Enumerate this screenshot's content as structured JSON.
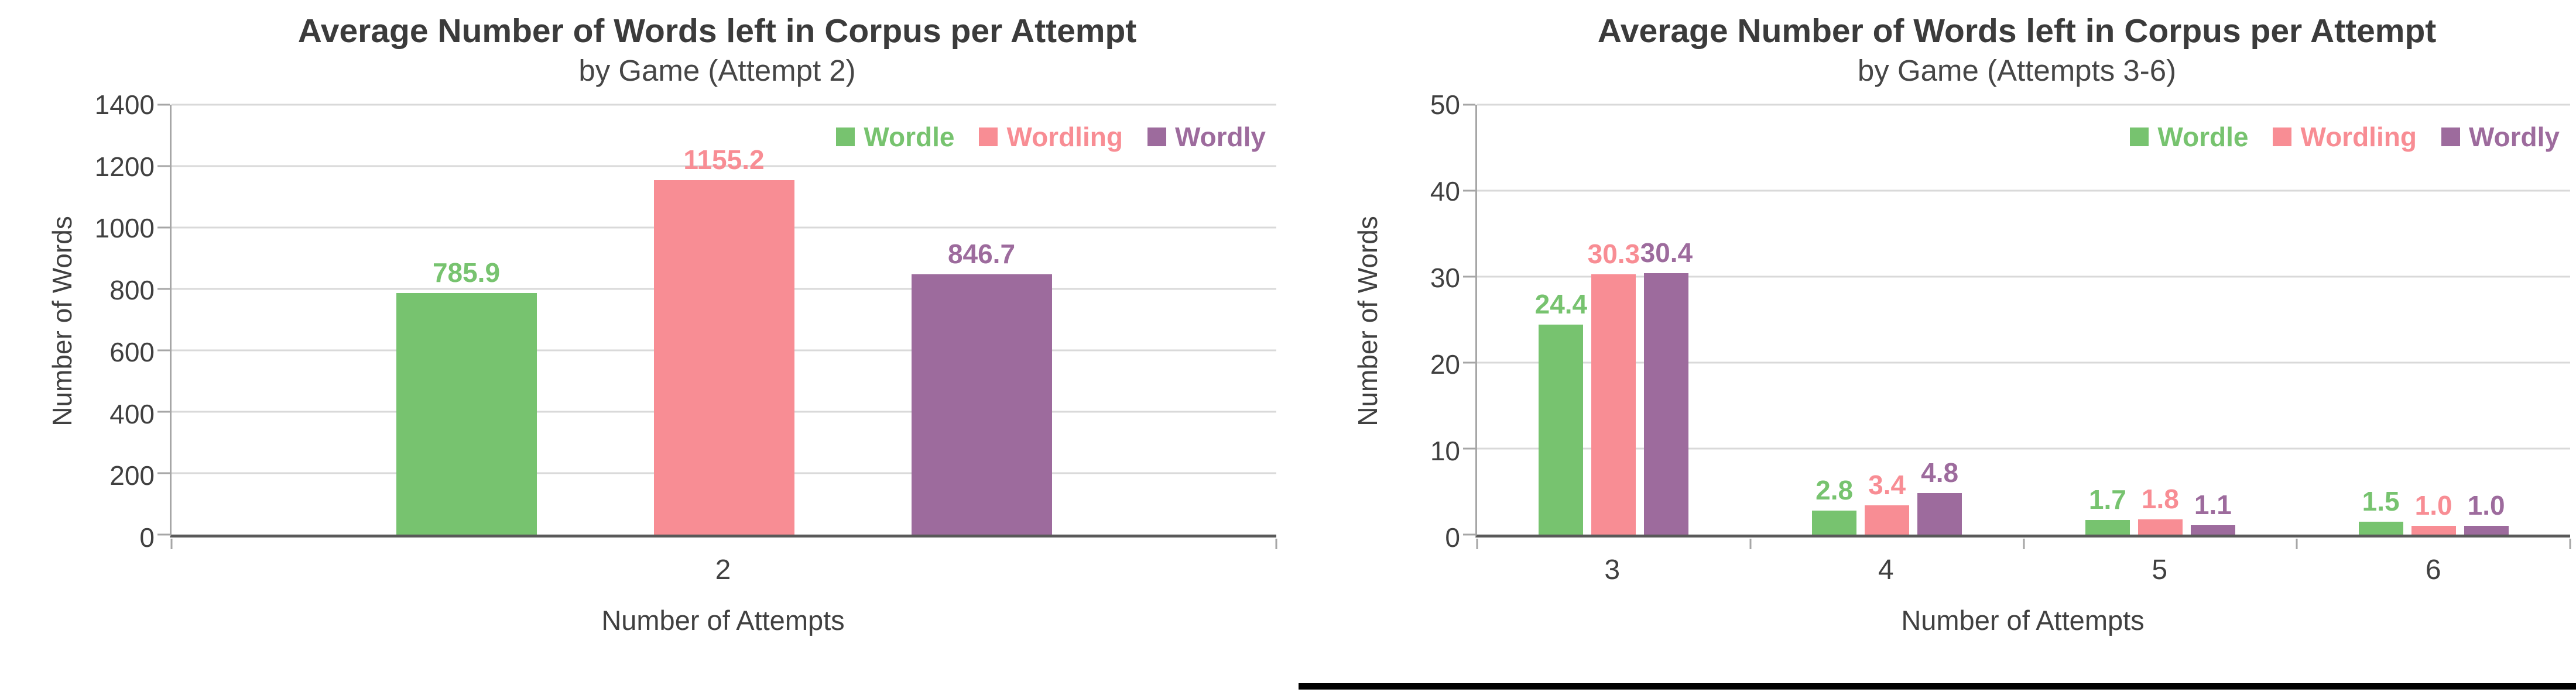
{
  "chart_data": [
    {
      "type": "bar",
      "title": "Average Number of Words left in Corpus per Attempt",
      "subtitle": "by Game (Attempt 2)",
      "ylabel": "Number of Words",
      "xlabel": "Number of Attempts",
      "ylim": [
        0,
        1400
      ],
      "yticks": [
        0,
        200,
        400,
        600,
        800,
        1000,
        1200,
        1400
      ],
      "categories": [
        "2"
      ],
      "grid": true,
      "legend_position": "top-right",
      "series": [
        {
          "name": "Wordle",
          "color": "#77C36F",
          "values": [
            785.9
          ],
          "labels": [
            "785.9"
          ]
        },
        {
          "name": "Wordling",
          "color": "#F88D94",
          "values": [
            1155.2
          ],
          "labels": [
            "1155.2"
          ]
        },
        {
          "name": "Wordly",
          "color": "#9D6B9D",
          "values": [
            846.7
          ],
          "labels": [
            "846.7"
          ]
        }
      ]
    },
    {
      "type": "bar",
      "title": "Average Number of Words left in Corpus per Attempt",
      "subtitle": "by Game (Attempts 3-6)",
      "ylabel": "Number of Words",
      "xlabel": "Number of Attempts",
      "ylim": [
        0,
        50
      ],
      "yticks": [
        0,
        10,
        20,
        30,
        40,
        50
      ],
      "categories": [
        "3",
        "4",
        "5",
        "6"
      ],
      "grid": true,
      "legend_position": "top-right",
      "series": [
        {
          "name": "Wordle",
          "color": "#77C36F",
          "values": [
            24.4,
            2.8,
            1.7,
            1.5
          ],
          "labels": [
            "24.4",
            "2.8",
            "1.7",
            "1.5"
          ]
        },
        {
          "name": "Wordling",
          "color": "#F88D94",
          "values": [
            30.3,
            3.4,
            1.8,
            1.0
          ],
          "labels": [
            "30.3",
            "3.4",
            "1.8",
            "1.0"
          ]
        },
        {
          "name": "Wordly",
          "color": "#9D6B9D",
          "values": [
            30.4,
            4.8,
            1.1,
            1.0
          ],
          "labels": [
            "30.4",
            "4.8",
            "1.1",
            "1.0"
          ]
        }
      ]
    }
  ]
}
